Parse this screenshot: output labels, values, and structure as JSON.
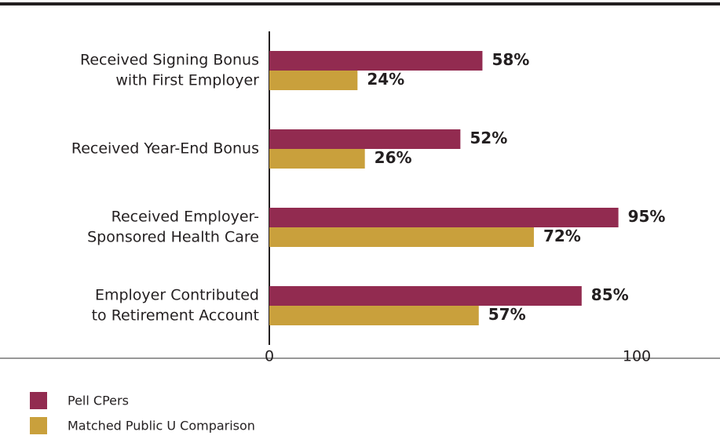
{
  "chart_data": {
    "type": "bar",
    "orientation": "horizontal",
    "categories": [
      [
        "Received Signing Bonus",
        "with First Employer"
      ],
      [
        "Received Year-End Bonus"
      ],
      [
        "Received Employer-",
        "Sponsored Health Care"
      ],
      [
        "Employer Contributed",
        "to Retirement Account"
      ]
    ],
    "series": [
      {
        "name": "Pell CPers",
        "color": "#922b50",
        "values": [
          58,
          52,
          95,
          85
        ],
        "value_labels": [
          "58%",
          "52%",
          "95%",
          "85%"
        ]
      },
      {
        "name": "Matched Public U Comparison",
        "color": "#c9a03c",
        "values": [
          24,
          26,
          72,
          57
        ],
        "value_labels": [
          "24%",
          "26%",
          "72%",
          "57%"
        ]
      }
    ],
    "xlim": [
      0,
      100
    ],
    "xticks": [
      0,
      100
    ],
    "grid": false
  }
}
